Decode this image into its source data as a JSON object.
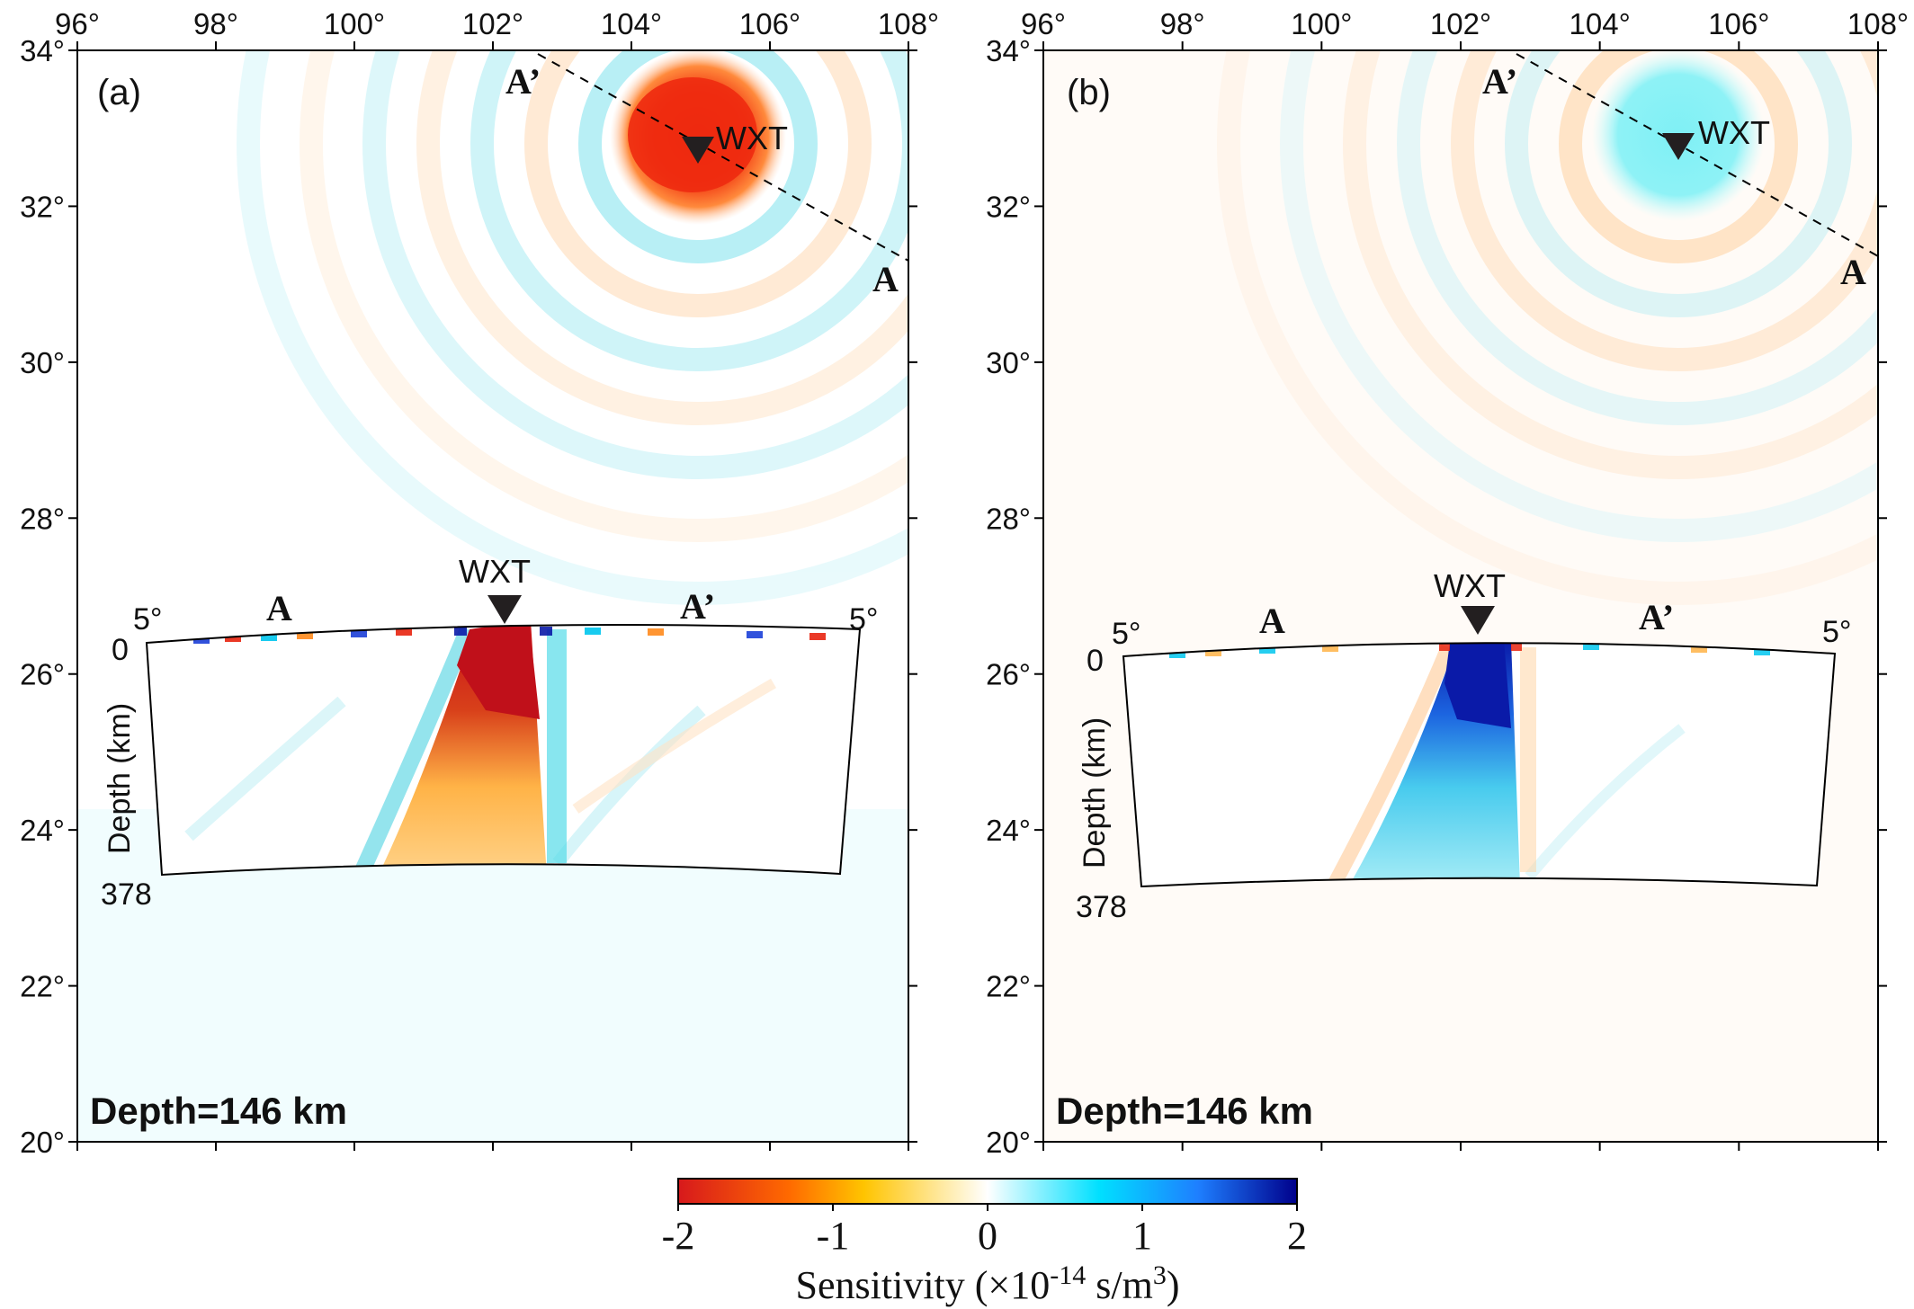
{
  "colors": {
    "frame": "#000000",
    "station_marker": "#231f20",
    "colormap": [
      "#d7191c",
      "#ff7f00",
      "#ffd000",
      "#ffffff",
      "#00e5ff",
      "#1e90ff",
      "#00008b"
    ]
  },
  "axes": {
    "x_ticks": [
      "96°",
      "98°",
      "100°",
      "102°",
      "104°",
      "106°",
      "108°"
    ],
    "y_ticks": [
      "34°",
      "32°",
      "30°",
      "28°",
      "26°",
      "24°",
      "22°",
      "20°"
    ],
    "lon_range": [
      96,
      108
    ],
    "lat_range": [
      20,
      34
    ]
  },
  "panels": [
    {
      "id": "a",
      "label": "(a)",
      "depth_text": "Depth=146 km",
      "station": "WXT",
      "sensitivity_sign": "negative",
      "profile": {
        "start_label": "A",
        "end_label": "A’",
        "left_angle": "5°",
        "right_angle": "5°",
        "depth_top": "0",
        "depth_bottom": "378",
        "depth_axis": "Depth (km)",
        "station": "WXT"
      }
    },
    {
      "id": "b",
      "label": "(b)",
      "depth_text": "Depth=146 km",
      "station": "WXT",
      "sensitivity_sign": "positive",
      "profile": {
        "start_label": "A",
        "end_label": "A’",
        "left_angle": "5°",
        "right_angle": "5°",
        "depth_top": "0",
        "depth_bottom": "378",
        "depth_axis": "Depth (km)",
        "station": "WXT"
      }
    }
  ],
  "colorbar": {
    "ticks": [
      "-2",
      "-1",
      "0",
      "1",
      "2"
    ],
    "range": [
      -2,
      2
    ],
    "title_main": "Sensitivity (",
    "title_times": "×10",
    "title_exp": "-14",
    "title_unit": " s/m",
    "title_unit_exp": "3",
    "title_close": ")"
  }
}
